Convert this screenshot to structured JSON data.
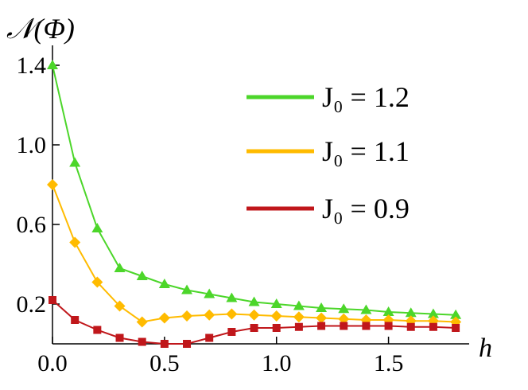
{
  "chart_data": {
    "type": "line",
    "title": "𝒩(Φ)",
    "x_label": "h",
    "x": [
      0,
      0.1,
      0.2,
      0.3,
      0.4,
      0.5,
      0.6,
      0.7,
      0.8,
      0.9,
      1.0,
      1.1,
      1.2,
      1.3,
      1.4,
      1.5,
      1.6,
      1.7,
      1.8
    ],
    "series": [
      {
        "name": "J₀ = 1.2",
        "color": "#4cd62a",
        "marker": "triangle",
        "values": [
          1.4,
          0.91,
          0.58,
          0.38,
          0.34,
          0.3,
          0.27,
          0.25,
          0.23,
          0.21,
          0.2,
          0.19,
          0.18,
          0.175,
          0.17,
          0.16,
          0.155,
          0.15,
          0.145
        ]
      },
      {
        "name": "J₀ = 1.1",
        "color": "#ffbb00",
        "marker": "diamond",
        "values": [
          0.8,
          0.51,
          0.31,
          0.19,
          0.11,
          0.13,
          0.14,
          0.145,
          0.15,
          0.145,
          0.14,
          0.135,
          0.13,
          0.125,
          0.12,
          0.12,
          0.115,
          0.115,
          0.11
        ]
      },
      {
        "name": "J₀ = 0.9",
        "color": "#c0171b",
        "marker": "square",
        "values": [
          0.22,
          0.12,
          0.07,
          0.03,
          0.01,
          0.0,
          0.0,
          0.03,
          0.06,
          0.08,
          0.08,
          0.085,
          0.09,
          0.09,
          0.09,
          0.09,
          0.085,
          0.085,
          0.08
        ]
      }
    ],
    "xlim": [
      0,
      1.86
    ],
    "ylim": [
      0,
      1.5
    ],
    "xticks": [
      {
        "value": 0,
        "label": "0.0"
      },
      0.5,
      {
        "value": 1,
        "label": "1.0"
      },
      1.5
    ],
    "yticks": [
      0.2,
      0.6,
      {
        "value": 1,
        "label": "1.0"
      },
      1.4
    ],
    "legend": "upper right"
  }
}
